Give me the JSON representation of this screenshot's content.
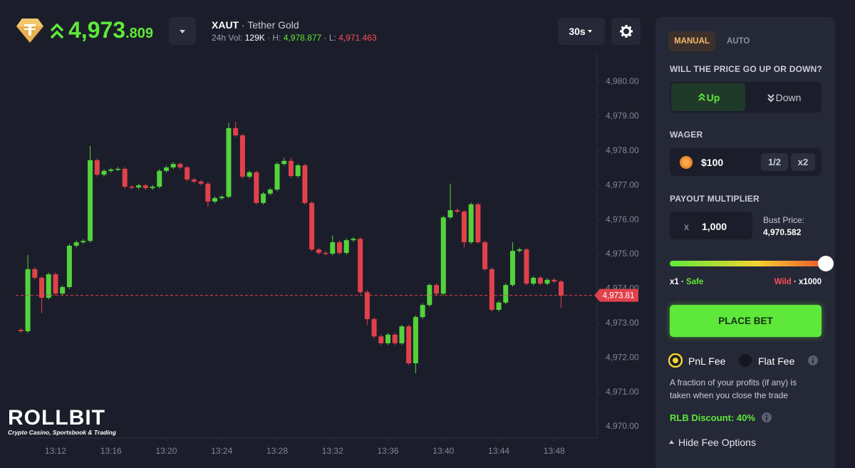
{
  "header": {
    "price_main": "4,973",
    "price_decimals": ".809",
    "symbol": "XAUT",
    "name": "· Tether Gold",
    "vol_label": "24h Vol:",
    "vol": "129K",
    "high_label": "· H:",
    "high": "4,978.877",
    "low_label": "· L:",
    "low": "4,971.463",
    "interval": "30s"
  },
  "logo": {
    "name": "ROLLBIT",
    "tagline": "Crypto Casino, Sportsbook & Trading"
  },
  "chart_data": {
    "type": "candlestick",
    "up_color": "#52d33b",
    "down_color": "#e1414b",
    "open": [
      4972.81,
      4972.77,
      4974.57,
      4974.32,
      4973.74,
      4974.42,
      4973.86,
      4974.05,
      4975.25,
      4975.35,
      4975.39,
      4977.73,
      4977.31,
      4977.42,
      4977.46,
      4977.48,
      4976.96,
      4976.94,
      4977.0,
      4976.92,
      4976.96,
      4977.42,
      4977.52,
      4977.62,
      4977.52,
      4977.17,
      4977.11,
      4977.05,
      4976.53,
      4976.63,
      4976.67,
      4978.66,
      4978.45,
      4977.25,
      4977.38,
      4976.49,
      4976.76,
      4976.88,
      4977.62,
      4977.71,
      4977.27,
      4977.58,
      4976.49,
      4975.14,
      4975.04,
      4975.02,
      4975.35,
      4975.04,
      4975.41,
      4975.45,
      4973.9,
      4973.12,
      4972.62,
      4972.42,
      4972.67,
      4972.42,
      4972.91,
      4971.84,
      4973.18,
      4973.53,
      4974.11,
      4973.86,
      4976.07,
      4976.28,
      4976.24,
      4975.35,
      4976.45,
      4975.35,
      4974.57,
      4973.39,
      4973.6,
      4974.11,
      4975.1,
      4975.14,
      4974.15,
      4974.32,
      4974.15,
      4974.26,
      4974.21
    ],
    "high": [
      4972.86,
      4974.98,
      4974.62,
      4974.37,
      4974.47,
      4974.47,
      4974.1,
      4975.3,
      4975.4,
      4975.44,
      4978.14,
      4977.78,
      4977.47,
      4977.51,
      4977.53,
      4977.53,
      4977.01,
      4977.05,
      4977.05,
      4977.01,
      4977.47,
      4977.57,
      4977.67,
      4977.67,
      4977.57,
      4977.22,
      4977.16,
      4977.1,
      4976.68,
      4976.72,
      4978.82,
      4978.85,
      4978.5,
      4977.43,
      4977.43,
      4976.81,
      4976.93,
      4977.67,
      4977.8,
      4977.8,
      4977.63,
      4977.63,
      4976.54,
      4975.19,
      4975.09,
      4975.55,
      4975.4,
      4975.46,
      4975.5,
      4975.5,
      4973.95,
      4973.17,
      4972.67,
      4972.72,
      4972.72,
      4972.96,
      4972.96,
      4973.23,
      4973.58,
      4974.16,
      4974.16,
      4976.12,
      4977.05,
      4976.33,
      4976.29,
      4976.5,
      4976.5,
      4975.4,
      4974.62,
      4973.65,
      4974.16,
      4975.35,
      4975.19,
      4975.19,
      4974.37,
      4974.37,
      4974.31,
      4974.31,
      4974.26
    ],
    "low": [
      4972.72,
      4972.72,
      4974.27,
      4973.29,
      4973.69,
      4973.81,
      4973.81,
      4974.0,
      4975.2,
      4975.3,
      4975.34,
      4977.26,
      4977.26,
      4977.37,
      4977.41,
      4976.91,
      4976.89,
      4976.89,
      4976.87,
      4976.87,
      4976.91,
      4977.37,
      4977.47,
      4977.47,
      4977.12,
      4977.06,
      4977.0,
      4976.38,
      4976.48,
      4976.58,
      4976.62,
      4978.4,
      4977.2,
      4977.2,
      4976.44,
      4976.44,
      4976.71,
      4976.83,
      4977.57,
      4977.22,
      4977.22,
      4976.44,
      4975.09,
      4974.99,
      4974.97,
      4974.97,
      4974.99,
      4974.99,
      4975.36,
      4973.85,
      4972.95,
      4972.57,
      4972.37,
      4972.37,
      4972.37,
      4972.37,
      4971.79,
      4971.55,
      4973.13,
      4973.48,
      4973.81,
      4973.81,
      4976.02,
      4976.19,
      4975.2,
      4975.3,
      4975.3,
      4974.52,
      4973.34,
      4973.34,
      4973.55,
      4974.06,
      4975.05,
      4974.1,
      4974.1,
      4974.1,
      4974.1,
      4974.16,
      4973.45
    ],
    "close": [
      4972.77,
      4974.57,
      4974.32,
      4973.74,
      4974.42,
      4973.86,
      4974.05,
      4975.25,
      4975.35,
      4975.39,
      4977.73,
      4977.31,
      4977.42,
      4977.46,
      4977.48,
      4976.96,
      4976.94,
      4977.0,
      4976.92,
      4976.96,
      4977.42,
      4977.52,
      4977.62,
      4977.52,
      4977.17,
      4977.11,
      4977.05,
      4976.53,
      4976.63,
      4976.67,
      4978.66,
      4978.45,
      4977.25,
      4977.38,
      4976.49,
      4976.76,
      4976.88,
      4977.62,
      4977.71,
      4977.27,
      4977.58,
      4976.49,
      4975.14,
      4975.04,
      4975.02,
      4975.35,
      4975.04,
      4975.41,
      4975.45,
      4973.9,
      4973.12,
      4972.62,
      4972.42,
      4972.67,
      4972.42,
      4972.91,
      4971.84,
      4973.18,
      4973.53,
      4974.11,
      4973.86,
      4976.07,
      4976.28,
      4976.24,
      4975.35,
      4976.45,
      4975.35,
      4974.57,
      4973.39,
      4973.6,
      4974.11,
      4975.1,
      4975.14,
      4974.15,
      4974.32,
      4974.15,
      4974.26,
      4974.21,
      4973.8
    ],
    "xlim": [
      -3.02,
      82.37
    ],
    "xticks": [
      {
        "value": 5,
        "label": "13:12"
      },
      {
        "value": 13,
        "label": "13:16"
      },
      {
        "value": 21,
        "label": "13:20"
      },
      {
        "value": 29,
        "label": "13:24"
      },
      {
        "value": 37,
        "label": "13:28"
      },
      {
        "value": 45,
        "label": "13:32"
      },
      {
        "value": 53,
        "label": "13:36"
      },
      {
        "value": 61,
        "label": "13:40"
      },
      {
        "value": 69,
        "label": "13:44"
      },
      {
        "value": 77,
        "label": "13:48"
      }
    ],
    "ylim": [
      4969.67,
      4980.62
    ],
    "yticks": [
      {
        "value": 4970,
        "label": "4,970.00"
      },
      {
        "value": 4971,
        "label": "4,971.00"
      },
      {
        "value": 4972,
        "label": "4,972.00"
      },
      {
        "value": 4973,
        "label": "4,973.00"
      },
      {
        "value": 4974,
        "label": "4,974.00"
      },
      {
        "value": 4975,
        "label": "4,975.00"
      },
      {
        "value": 4976,
        "label": "4,976.00"
      },
      {
        "value": 4977,
        "label": "4,977.00"
      },
      {
        "value": 4978,
        "label": "4,978.00"
      },
      {
        "value": 4979,
        "label": "4,979.00"
      },
      {
        "value": 4980,
        "label": "4,980.00"
      }
    ],
    "price_line": {
      "value": 4973.81,
      "label": "4,973.81"
    },
    "grid": false
  },
  "sidebar": {
    "tabs": [
      "MANUAL",
      "AUTO"
    ],
    "question": "WILL THE PRICE GO UP OR DOWN?",
    "up": "Up",
    "down": "Down",
    "wager_label": "WAGER",
    "wager": "$100",
    "half": "1/2",
    "double": "x2",
    "multiplier_label": "PAYOUT MULTIPLIER",
    "multiplier_prefix": "x",
    "multiplier": "1,000",
    "bust_label": "Bust Price:",
    "bust_price": "4,970.582",
    "min_mult": "x1 ·",
    "safe": "Safe",
    "wild": "Wild",
    "max_mult": "· x1000",
    "place_bet": "PLACE BET",
    "fee_options": [
      "PnL Fee",
      "Flat Fee"
    ],
    "fee_note": "A fraction of your profits (if any) is taken when you close the trade",
    "discount": "RLB Discount: 40%",
    "hide_fee": "Hide Fee Options"
  }
}
